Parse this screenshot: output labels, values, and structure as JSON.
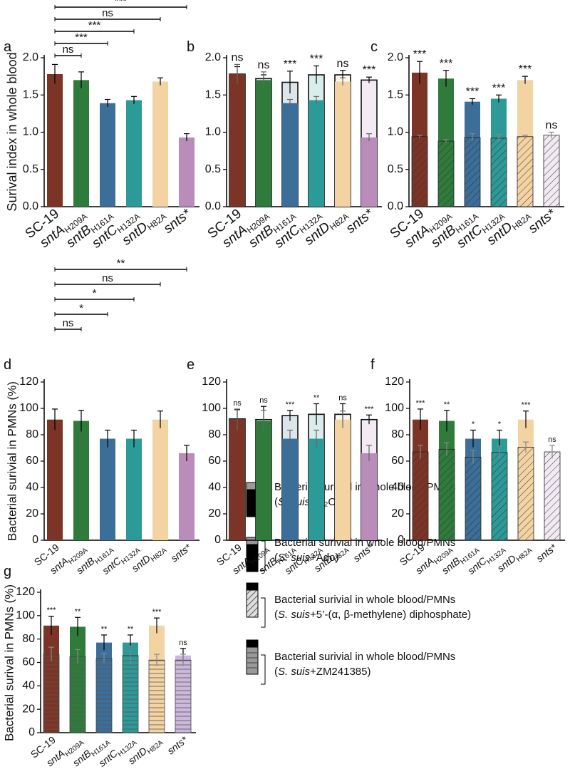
{
  "chart_data": [
    {
      "panel": "a",
      "type": "bar",
      "ylabel": "Surival index in whole blood",
      "categories": [
        "SC-19",
        "sntA",
        "sntB",
        "sntC",
        "sntD",
        "snts*"
      ],
      "category_subscripts": [
        null,
        "H209A",
        "H161A",
        "H132A",
        "H82A",
        null
      ],
      "colors": [
        "#7b3426",
        "#2e7b3b",
        "#3b6e98",
        "#2c9a97",
        "#f3d3a2",
        "#ba8cba"
      ],
      "ylim": [
        0,
        2.0
      ],
      "yticks": [
        {
          "value": 0,
          "label": "0.0"
        },
        0.5,
        {
          "value": 1,
          "label": "1.0"
        },
        1.5,
        {
          "value": 2,
          "label": "2.0"
        }
      ],
      "series": [
        {
          "fill": "solid",
          "error_color": "#000",
          "values": [
            1.78,
            1.7,
            1.39,
            1.43,
            1.68,
            0.93
          ],
          "errors": [
            0.13,
            0.11,
            0.05,
            0.05,
            0.05,
            0.05
          ]
        }
      ],
      "comparison_labels": [
        null,
        "ns",
        "***",
        "***",
        "ns",
        "***"
      ]
    },
    {
      "panel": "b",
      "type": "bar",
      "categories": [
        "SC-19",
        "sntA",
        "sntB",
        "sntC",
        "sntD",
        "snts*"
      ],
      "category_subscripts": [
        null,
        "H209A",
        "H161A",
        "H132A",
        "H82A",
        null
      ],
      "colors": [
        "#7b3426",
        "#2e7b3b",
        "#3b6e98",
        "#2c9a97",
        "#f3d3a2",
        "#ba8cba"
      ],
      "ylim": [
        0,
        2.0
      ],
      "yticks": [
        {
          "value": 0,
          "label": "0.0"
        },
        0.5,
        {
          "value": 1,
          "label": "1.0"
        },
        1.5,
        {
          "value": 2,
          "label": "2.0"
        }
      ],
      "series": [
        {
          "fill": "pale",
          "error_color": "#000",
          "values": [
            1.78,
            1.72,
            1.67,
            1.77,
            1.77,
            1.7
          ],
          "errors": [
            0.1,
            0.05,
            0.15,
            0.12,
            0.06,
            0.04
          ]
        },
        {
          "fill": "solid",
          "error_color": "#666",
          "values": [
            1.78,
            1.7,
            1.39,
            1.43,
            1.68,
            0.93
          ],
          "errors": [
            0.13,
            0.11,
            0.05,
            0.05,
            0.05,
            0.05
          ]
        }
      ],
      "labels": [
        "ns",
        "ns",
        "***",
        "***",
        "ns",
        "***"
      ]
    },
    {
      "panel": "c",
      "type": "bar",
      "categories": [
        "SC-19",
        "sntA",
        "sntB",
        "sntC",
        "sntD",
        "snts*"
      ],
      "category_subscripts": [
        null,
        "H209A",
        "H161A",
        "H132A",
        "H82A",
        null
      ],
      "colors": [
        "#7b3426",
        "#2e7b3b",
        "#3b6e98",
        "#2c9a97",
        "#f3d3a2",
        "#ba8cba"
      ],
      "ylim": [
        0,
        2.0
      ],
      "yticks": [
        {
          "value": 0,
          "label": "0.0"
        },
        0.5,
        {
          "value": 1,
          "label": "1.0"
        },
        1.5,
        {
          "value": 2,
          "label": "2.0"
        }
      ],
      "series": [
        {
          "fill": "solid",
          "error_color": "#000",
          "values": [
            1.8,
            1.72,
            1.41,
            1.45,
            1.7,
            null
          ],
          "errors": [
            0.15,
            0.11,
            0.04,
            0.05,
            0.05,
            null
          ]
        },
        {
          "fill": "hatch",
          "error_color": "#888",
          "values": [
            0.94,
            0.88,
            0.93,
            0.92,
            0.94,
            0.96
          ],
          "errors": [
            0.02,
            0.02,
            0.05,
            0.05,
            0.02,
            0.04
          ]
        }
      ],
      "labels": [
        "***",
        "***",
        "***",
        "***",
        "***",
        "ns"
      ]
    },
    {
      "panel": "d",
      "type": "bar",
      "ylabel": "Bacterial surivial in PMNs (%)",
      "categories": [
        "SC-19",
        "sntA",
        "sntB",
        "sntC",
        "sntD",
        "snts*"
      ],
      "category_subscripts": [
        null,
        "H209A",
        "H161A",
        "H132A",
        "H82A",
        null
      ],
      "colors": [
        "#7b3426",
        "#2e7b3b",
        "#3b6e98",
        "#2c9a97",
        "#f3d3a2",
        "#ba8cba"
      ],
      "ylim": [
        0,
        120
      ],
      "yticks": [
        0,
        20,
        40,
        60,
        80,
        100,
        120
      ],
      "series": [
        {
          "fill": "solid",
          "error_color": "#000",
          "values": [
            91.5,
            90.5,
            77,
            77,
            91.5,
            66
          ],
          "errors": [
            8,
            8,
            6.5,
            6.5,
            6.5,
            6
          ]
        }
      ],
      "comparison_labels": [
        null,
        "ns",
        "*",
        "*",
        "ns",
        "**"
      ]
    },
    {
      "panel": "e",
      "type": "bar",
      "categories": [
        "SC-19",
        "sntA",
        "sntB",
        "sntC",
        "sntD",
        "snts*"
      ],
      "category_subscripts": [
        null,
        "H209A",
        "H161A",
        "H132A",
        "H82A",
        null
      ],
      "colors": [
        "#7b3426",
        "#2e7b3b",
        "#3b6e98",
        "#2c9a97",
        "#f3d3a2",
        "#ba8cba"
      ],
      "ylim": [
        0,
        120
      ],
      "yticks": [
        0,
        20,
        40,
        60,
        80,
        100,
        120
      ],
      "series": [
        {
          "fill": "pale",
          "error_color": "#000",
          "values": [
            92,
            91.5,
            94.5,
            95.5,
            95.5,
            91.5
          ],
          "errors": [
            7,
            10,
            4,
            8,
            8,
            3.5
          ]
        },
        {
          "fill": "solid",
          "error_color": "#666",
          "values": [
            91.5,
            90.5,
            77,
            77,
            91.5,
            66
          ],
          "errors": [
            8,
            8,
            6.5,
            6.5,
            6.5,
            6
          ]
        }
      ],
      "labels": [
        "ns",
        "ns",
        "***",
        "**",
        "ns",
        "***"
      ]
    },
    {
      "panel": "f",
      "type": "bar",
      "categories": [
        "SC-19",
        "sntA",
        "sntB",
        "sntC",
        "sntD",
        "snts*"
      ],
      "category_subscripts": [
        null,
        "H209A",
        "H161A",
        "H132A",
        "H82A",
        null
      ],
      "colors": [
        "#7b3426",
        "#2e7b3b",
        "#3b6e98",
        "#2c9a97",
        "#f3d3a2",
        "#ba8cba"
      ],
      "ylim": [
        0,
        120
      ],
      "yticks": [
        0,
        20,
        40,
        60,
        80,
        100,
        120
      ],
      "series": [
        {
          "fill": "solid",
          "error_color": "#000",
          "values": [
            91.5,
            90.5,
            77,
            77,
            91.5,
            null
          ],
          "errors": [
            8,
            8,
            6.5,
            6.5,
            6.5,
            null
          ]
        },
        {
          "fill": "hatch",
          "error_color": "#888",
          "values": [
            67,
            69,
            63,
            66.5,
            70.5,
            67
          ],
          "errors": [
            5,
            5,
            5,
            5,
            4,
            5
          ]
        }
      ],
      "labels": [
        "***",
        "**",
        "*",
        "*",
        "***",
        "ns"
      ]
    },
    {
      "panel": "g",
      "type": "bar",
      "ylabel": "Bacterial surival in PMNs (%)",
      "categories": [
        "SC-19",
        "sntA",
        "sntB",
        "sntC",
        "sntD",
        "snts*"
      ],
      "category_subscripts": [
        null,
        "H209A",
        "H161A",
        "H132A",
        "H82A",
        null
      ],
      "colors": [
        "#7b3426",
        "#2e7b3b",
        "#3b6e98",
        "#2c9a97",
        "#f3d3a2",
        "#cbb8dc"
      ],
      "ylim": [
        0,
        120
      ],
      "yticks": [
        0,
        20,
        40,
        60,
        80,
        100,
        120
      ],
      "series": [
        {
          "fill": "solid",
          "error_color": "#000",
          "values": [
            91.5,
            90.5,
            77,
            77,
            91.5,
            66
          ],
          "errors": [
            8,
            8,
            6.5,
            6.5,
            6.5,
            6
          ]
        },
        {
          "fill": "stripe",
          "error_color": "#888",
          "values": [
            67,
            65,
            63.5,
            66,
            62,
            62
          ],
          "errors": [
            6,
            6,
            4,
            8,
            5,
            5
          ]
        }
      ],
      "labels": [
        "***",
        "**",
        "**",
        "**",
        "***",
        "ns"
      ]
    }
  ],
  "legend": {
    "items": [
      {
        "title": "Bacterial surivial in whole blood/PMNs",
        "parts": [
          "(",
          "S. suis",
          "+H₂O)"
        ]
      },
      {
        "title": "Bacterial surivial in whole blood/PMNs",
        "parts": [
          "(",
          "S. suis",
          "+Ado)"
        ]
      },
      {
        "title": "Bacterial surivial in whole blood/PMNs",
        "parts": [
          "(",
          "S. suis",
          "+5’-(α, β-methylene) diphosphate)"
        ]
      },
      {
        "title": "Bacterial surivial in whole blood/PMNs",
        "parts": [
          "(",
          "S. suis",
          "+ZM241385)"
        ]
      }
    ]
  }
}
